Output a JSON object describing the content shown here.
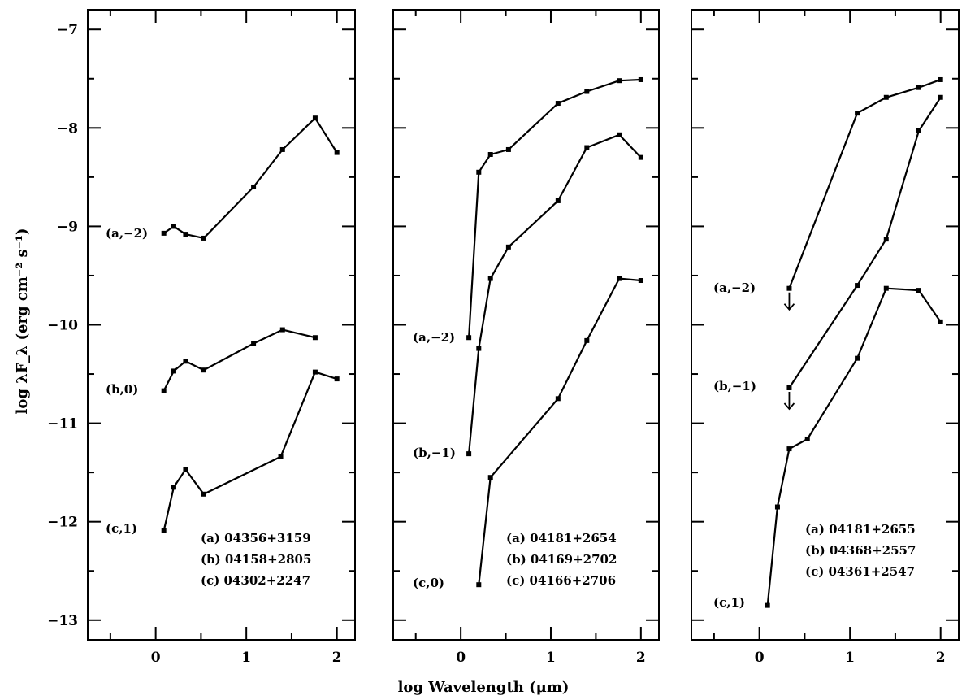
{
  "figure": {
    "xlabel": "log Wavelength (μm)",
    "ylabel": "log λF_λ (erg cm⁻² s⁻¹)"
  },
  "chart_data": [
    {
      "type": "line",
      "title": "",
      "xlabel": "log Wavelength (μm)",
      "ylabel": "log λF_λ (erg cm⁻² s⁻¹)",
      "xlim": [
        -0.75,
        2.2
      ],
      "ylim": [
        -13.2,
        -6.8
      ],
      "xticks": [
        0,
        1,
        2
      ],
      "yticks": [
        -7,
        -8,
        -9,
        -10,
        -11,
        -12,
        -13
      ],
      "grid": false,
      "series": [
        {
          "label": "(a,−2)",
          "x": [
            0.09,
            0.2,
            0.33,
            0.53,
            1.08,
            1.4,
            1.76,
            2.0
          ],
          "y": [
            -9.07,
            -9.0,
            -9.08,
            -9.12,
            -8.6,
            -8.22,
            -7.9,
            -8.25
          ],
          "upper_limit": []
        },
        {
          "label": "(b,0)",
          "x": [
            0.09,
            0.2,
            0.33,
            0.53,
            1.08,
            1.4,
            1.76
          ],
          "y": [
            -10.67,
            -10.47,
            -10.37,
            -10.46,
            -10.19,
            -10.05,
            -10.13
          ],
          "upper_limit": []
        },
        {
          "label": "(c,1)",
          "x": [
            0.09,
            0.2,
            0.33,
            0.53,
            1.38,
            1.76,
            2.0
          ],
          "y": [
            -12.09,
            -11.65,
            -11.47,
            -11.72,
            -11.34,
            -10.48,
            -10.55
          ],
          "upper_limit": []
        }
      ],
      "legend": [
        "(a) 04356+3159",
        "(b) 04158+2805",
        "(c) 04302+2247"
      ]
    },
    {
      "type": "line",
      "title": "",
      "xlabel": "log Wavelength (μm)",
      "ylabel": "",
      "xlim": [
        -0.75,
        2.2
      ],
      "ylim": [
        -13.2,
        -6.8
      ],
      "xticks": [
        0,
        1,
        2
      ],
      "yticks": [
        -7,
        -8,
        -9,
        -10,
        -11,
        -12,
        -13
      ],
      "grid": false,
      "series": [
        {
          "label": "(a,−2)",
          "x": [
            0.09,
            0.2,
            0.33,
            0.53,
            1.08,
            1.4,
            1.76,
            2.0
          ],
          "y": [
            -10.13,
            -8.45,
            -8.27,
            -8.22,
            -7.75,
            -7.63,
            -7.52,
            -7.51
          ],
          "upper_limit": []
        },
        {
          "label": "(b,−1)",
          "x": [
            0.09,
            0.2,
            0.33,
            0.53,
            1.08,
            1.4,
            1.76,
            2.0
          ],
          "y": [
            -11.31,
            -10.24,
            -9.53,
            -9.21,
            -8.74,
            -8.2,
            -8.07,
            -8.3
          ],
          "upper_limit": []
        },
        {
          "label": "(c,0)",
          "x": [
            0.2,
            0.33,
            1.08,
            1.4,
            1.76,
            2.0
          ],
          "y": [
            -12.64,
            -11.55,
            -10.75,
            -10.16,
            -9.53,
            -9.55
          ],
          "upper_limit": []
        }
      ],
      "legend": [
        "(a) 04181+2654",
        "(b) 04169+2702",
        "(c) 04166+2706"
      ]
    },
    {
      "type": "line",
      "title": "",
      "xlabel": "log Wavelength (μm)",
      "ylabel": "",
      "xlim": [
        -0.75,
        2.2
      ],
      "ylim": [
        -13.2,
        -6.8
      ],
      "xticks": [
        0,
        1,
        2
      ],
      "yticks": [
        -7,
        -8,
        -9,
        -10,
        -11,
        -12,
        -13
      ],
      "grid": false,
      "series": [
        {
          "label": "(a,−2)",
          "x": [
            0.33,
            1.08,
            1.4,
            1.76,
            2.0
          ],
          "y": [
            -9.63,
            -7.85,
            -7.69,
            -7.59,
            -7.51
          ],
          "upper_limit": [
            0.33
          ]
        },
        {
          "label": "(b,−1)",
          "x": [
            0.33,
            1.08,
            1.4,
            1.76,
            2.0
          ],
          "y": [
            -10.64,
            -9.6,
            -9.13,
            -8.03,
            -7.69
          ],
          "upper_limit": [
            0.33
          ]
        },
        {
          "label": "(c,1)",
          "x": [
            0.09,
            0.2,
            0.33,
            0.53,
            1.08,
            1.4,
            1.76,
            2.0
          ],
          "y": [
            -12.85,
            -11.85,
            -11.26,
            -11.16,
            -10.34,
            -9.63,
            -9.65,
            -9.97
          ],
          "upper_limit": []
        }
      ],
      "legend": [
        "(a) 04181+2655",
        "(b) 04368+2557",
        "(c) 04361+2547"
      ]
    }
  ]
}
